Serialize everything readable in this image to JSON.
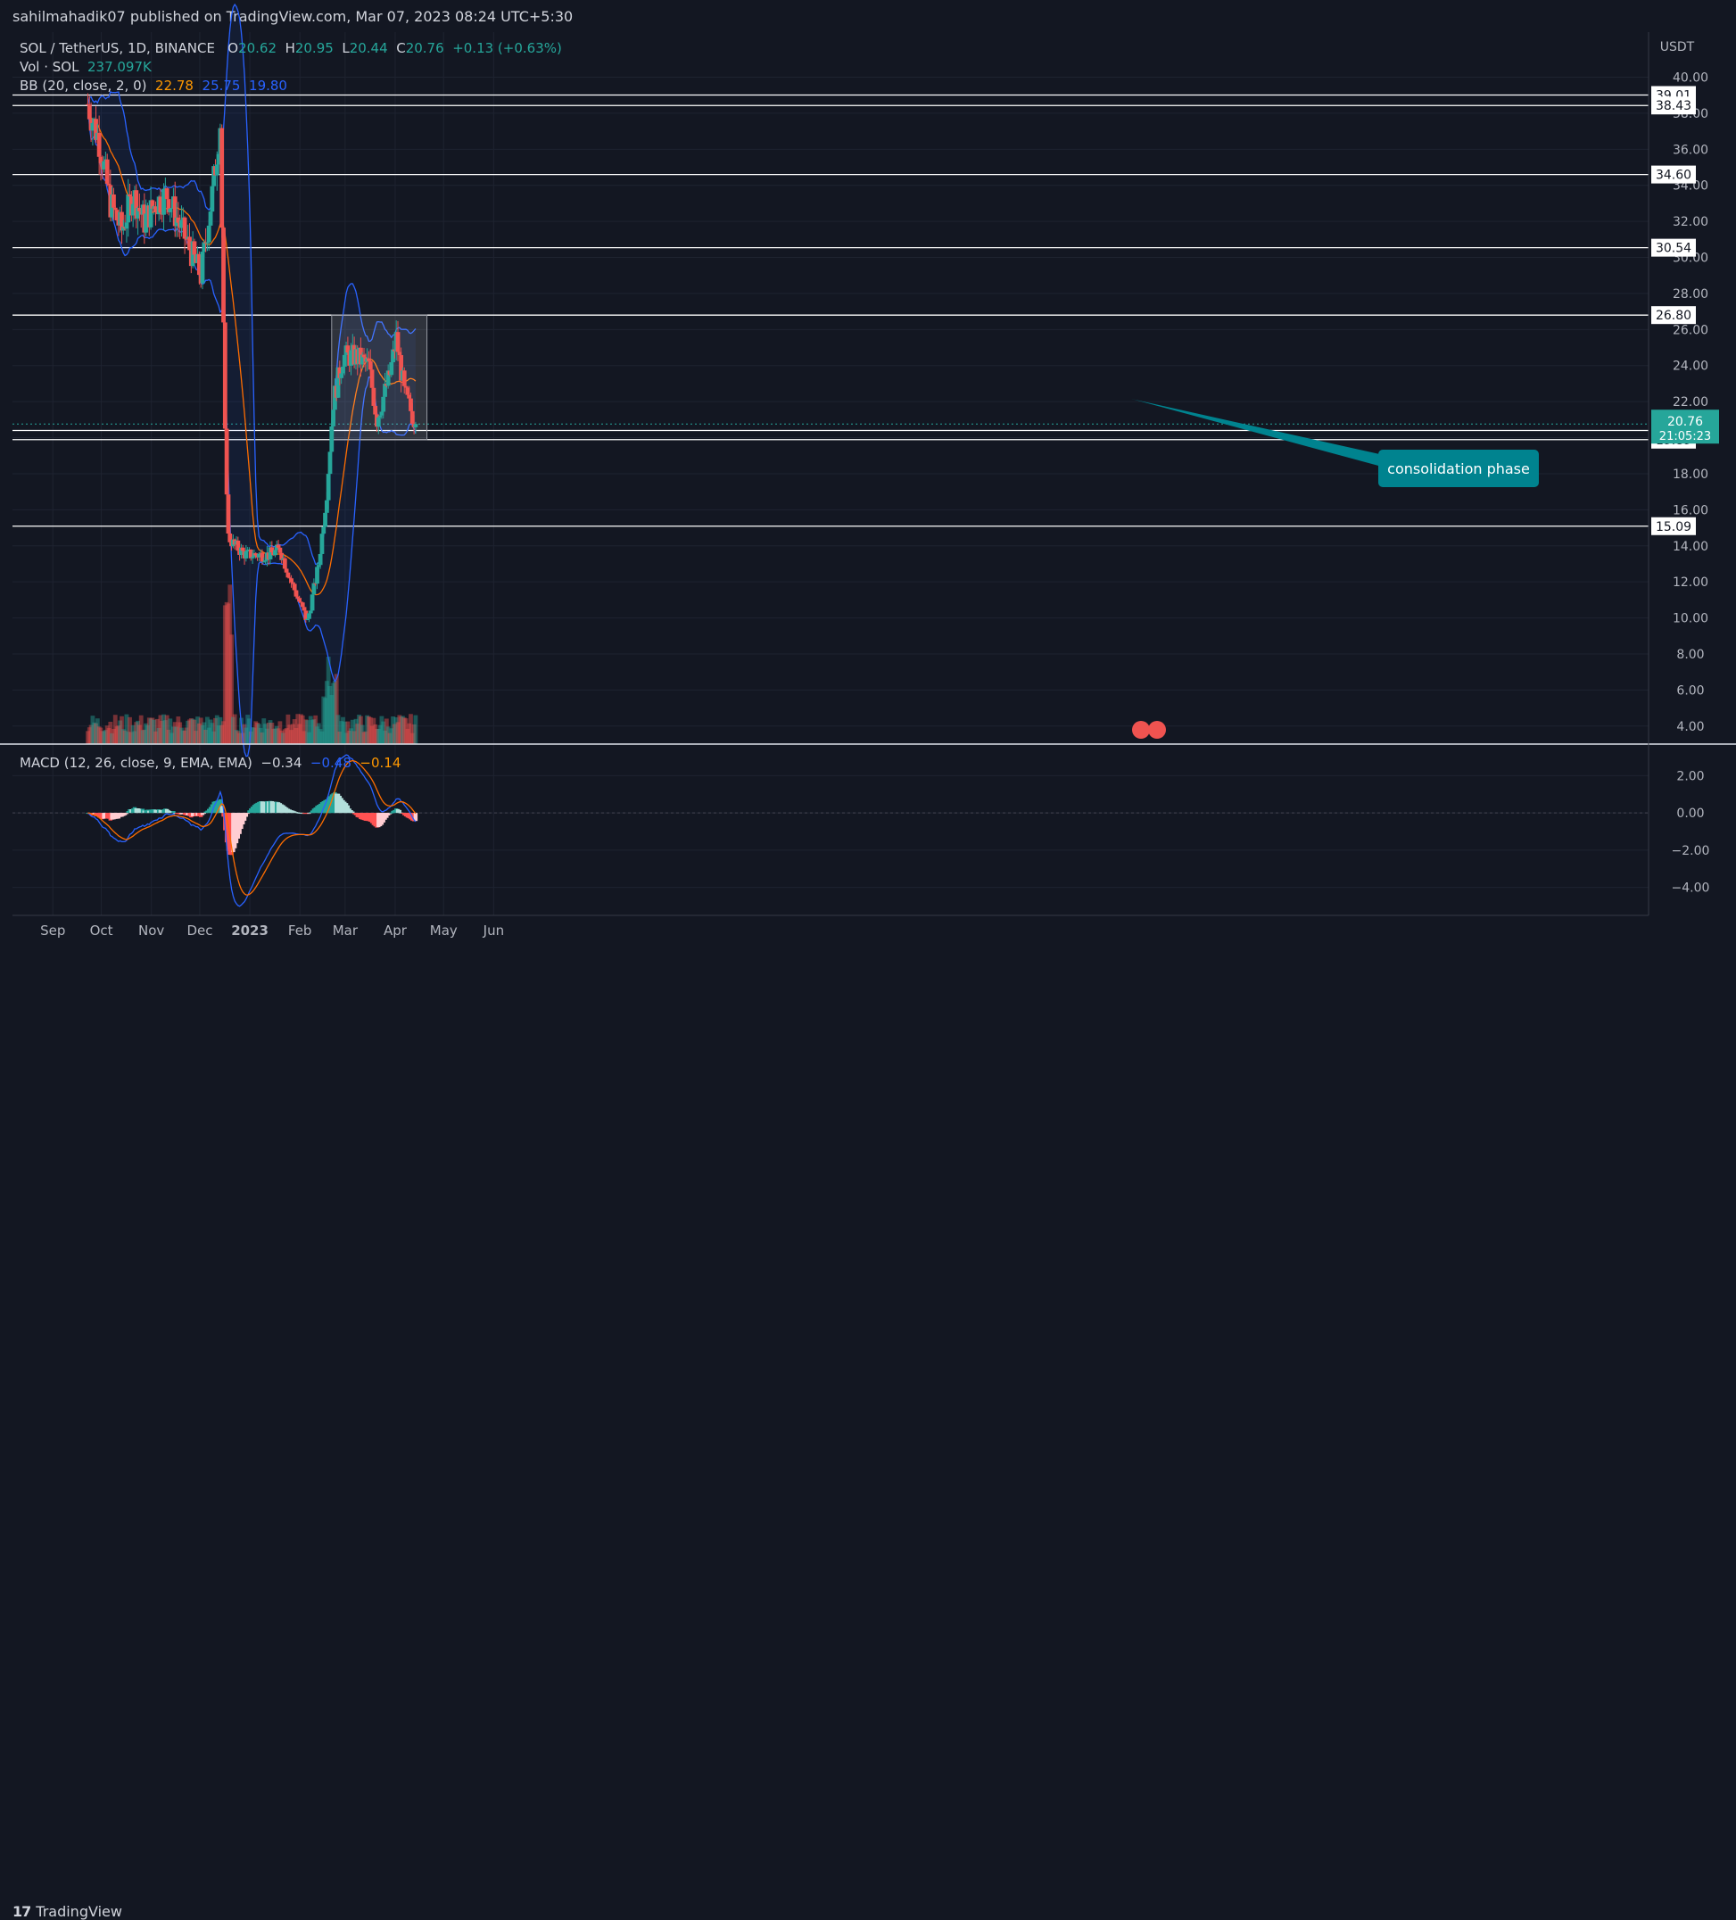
{
  "publisher_line": "sahilmahadik07 published on TradingView.com, Mar 07, 2023 08:24 UTC+5:30",
  "legend": {
    "symbol": "SOL / TetherUS, 1D, BINANCE",
    "o_label": "O",
    "o": "20.62",
    "h_label": "H",
    "h": "20.95",
    "l_label": "L",
    "l": "20.44",
    "c_label": "C",
    "c": "20.76",
    "change": "+0.13 (+0.63%)",
    "vol_label": "Vol · SOL",
    "vol": "237.097K",
    "bb_label": "BB (20, close, 2, 0)",
    "bb_basis": "22.78",
    "bb_upper": "25.75",
    "bb_lower": "19.80"
  },
  "macd_legend": {
    "label": "MACD (12, 26, close, 9, EMA, EMA)",
    "hist": "−0.34",
    "macd": "−0.48",
    "signal": "−0.14"
  },
  "annotation": {
    "text": "consolidation phase"
  },
  "price_badge": {
    "price": "20.76",
    "countdown": "21:05:23"
  },
  "footer": {
    "brand": "TradingView"
  },
  "colors": {
    "bg": "#131722",
    "up": "#26a69a",
    "down": "#ef5350",
    "bb": "#2962ff",
    "basis": "#ff6d00",
    "annotation": "#00838f"
  },
  "chart_data": [
    {
      "type": "candlestick",
      "title": "SOL / TetherUS, 1D, BINANCE",
      "currency": "USDT",
      "ylim": [
        3.0,
        42.5
      ],
      "y_ticks": [
        "4.00",
        "6.00",
        "8.00",
        "10.00",
        "12.00",
        "14.00",
        "16.00",
        "18.00",
        "20.00",
        "22.00",
        "24.00",
        "26.00",
        "28.00",
        "30.00",
        "32.00",
        "34.00",
        "36.00",
        "38.00",
        "40.00"
      ],
      "x_ticks": [
        "Sep",
        "Oct",
        "Nov",
        "Dec",
        "2023",
        "Feb",
        "Mar",
        "Apr",
        "May",
        "Jun"
      ],
      "horizontal_levels": [
        "39.01",
        "38.43",
        "34.60",
        "30.54",
        "26.80",
        "20.40",
        "19.89",
        "15.09"
      ],
      "consolidation_box": {
        "from": "2023-01-13",
        "to": "2023-03-13",
        "low": 19.89,
        "high": 26.8
      },
      "close_path": [
        [
          "2022-08-15",
          38.5
        ],
        [
          "2022-08-22",
          36.5
        ],
        [
          "2022-08-29",
          33.0
        ],
        [
          "2022-09-05",
          31.5
        ],
        [
          "2022-09-12",
          33.5
        ],
        [
          "2022-09-19",
          32.0
        ],
        [
          "2022-09-26",
          33.0
        ],
        [
          "2022-10-03",
          33.5
        ],
        [
          "2022-10-10",
          32.0
        ],
        [
          "2022-10-17",
          30.5
        ],
        [
          "2022-10-24",
          29.0
        ],
        [
          "2022-10-31",
          33.5
        ],
        [
          "2022-11-05",
          37.5
        ],
        [
          "2022-11-08",
          20.0
        ],
        [
          "2022-11-10",
          14.5
        ],
        [
          "2022-11-14",
          14.0
        ],
        [
          "2022-11-21",
          13.5
        ],
        [
          "2022-11-28",
          13.5
        ],
        [
          "2022-12-05",
          13.5
        ],
        [
          "2022-12-12",
          13.8
        ],
        [
          "2022-12-19",
          12.0
        ],
        [
          "2022-12-29",
          9.8
        ],
        [
          "2023-01-05",
          13.0
        ],
        [
          "2023-01-10",
          17.0
        ],
        [
          "2023-01-14",
          22.0
        ],
        [
          "2023-01-20",
          24.5
        ],
        [
          "2023-01-28",
          24.5
        ],
        [
          "2023-02-05",
          24.0
        ],
        [
          "2023-02-10",
          21.0
        ],
        [
          "2023-02-18",
          23.5
        ],
        [
          "2023-02-22",
          25.5
        ],
        [
          "2023-02-27",
          22.5
        ],
        [
          "2023-03-06",
          20.76
        ]
      ]
    },
    {
      "type": "bar",
      "title": "MACD (12, 26, close, 9, EMA, EMA)",
      "ylim": [
        -5.5,
        3.5
      ],
      "y_ticks": [
        "2.00",
        "0.00",
        "−2.00",
        "−4.00"
      ],
      "current": {
        "histogram": -0.34,
        "macd": -0.48,
        "signal": -0.14
      }
    }
  ]
}
